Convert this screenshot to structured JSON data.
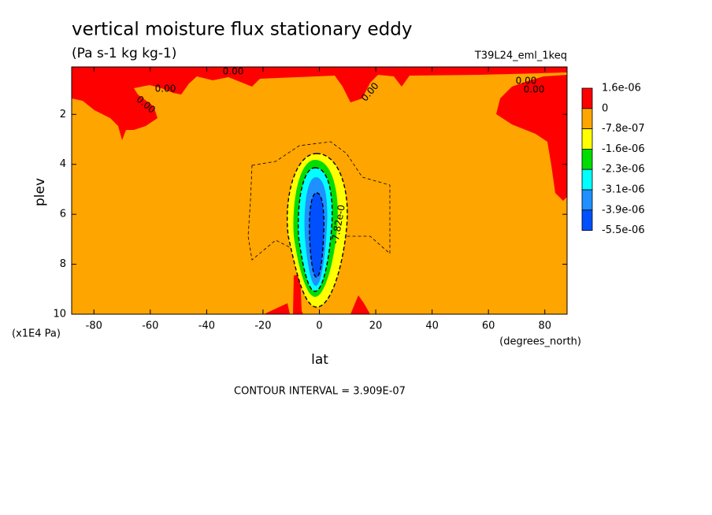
{
  "chart_data": {
    "type": "contour",
    "title": "vertical moisture flux stationary eddy",
    "subtitle": "(Pa s-1 kg kg-1)",
    "run_label": "T39L24_eml_1keq",
    "x_label": "lat",
    "x_units": "(degrees_north)",
    "y_label": "plev",
    "y_units": "(x1E4 Pa)",
    "footer": "CONTOUR INTERVAL = 3.909E-07",
    "xlim": [
      -87.9,
      87.9
    ],
    "xticks": [
      -80,
      -60,
      -40,
      -20,
      0,
      20,
      40,
      60,
      80
    ],
    "ylim": [
      10,
      0.1
    ],
    "yticks": [
      2,
      4,
      6,
      8,
      10
    ],
    "levels": [
      {
        "value": 1.6e-06,
        "label": "1.6e-06"
      },
      0,
      {
        "value": -7.8e-07,
        "label": "-7.8e-07"
      },
      {
        "value": -1.6e-06,
        "label": "-1.6e-06"
      },
      {
        "value": -2.3e-06,
        "label": "-2.3e-06"
      },
      {
        "value": -3.1e-06,
        "label": "-3.1e-06"
      },
      {
        "value": -3.9e-06,
        "label": "-3.9e-06"
      },
      {
        "value": -5.5e-06,
        "label": "-5.5e-06"
      }
    ],
    "colors": [
      "#ff0000",
      "#ffa500",
      "#ffff00",
      "#00dd00",
      "#00ffff",
      "#1e90ff",
      "#0050ff"
    ],
    "contour_labels": [
      "0.00",
      "0.00",
      "0.00",
      "0.00",
      "0.00",
      "0.00",
      "-7.82e-0"
    ]
  }
}
